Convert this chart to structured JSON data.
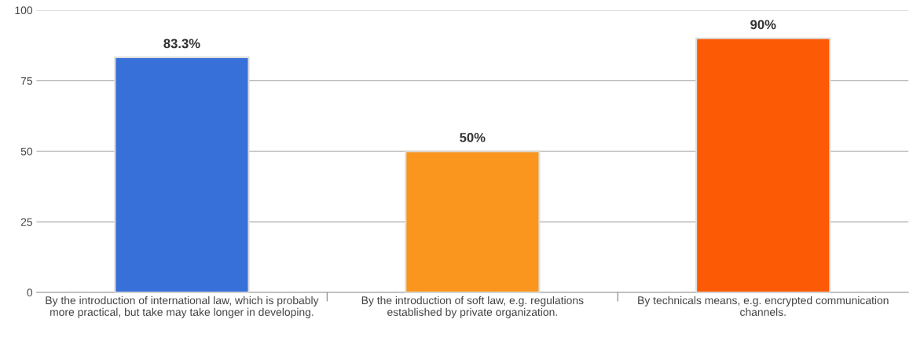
{
  "chart_data": {
    "type": "bar",
    "categories": [
      "By the introduction of international law, which is probably more practical, but take may take longer in developing.",
      "By the introduction of soft law, e.g. regulations established by private organization.",
      "By technicals means, e.g. encrypted communication channels."
    ],
    "values": [
      83.3,
      50,
      90
    ],
    "colors": [
      "#3670d8",
      "#fa961e",
      "#fc5a05"
    ],
    "value_labels": [
      "83.3%",
      "50%",
      "90%"
    ],
    "ylim": [
      0,
      100
    ],
    "yticks": [
      0,
      25,
      50,
      75,
      100
    ],
    "grid": "y"
  }
}
